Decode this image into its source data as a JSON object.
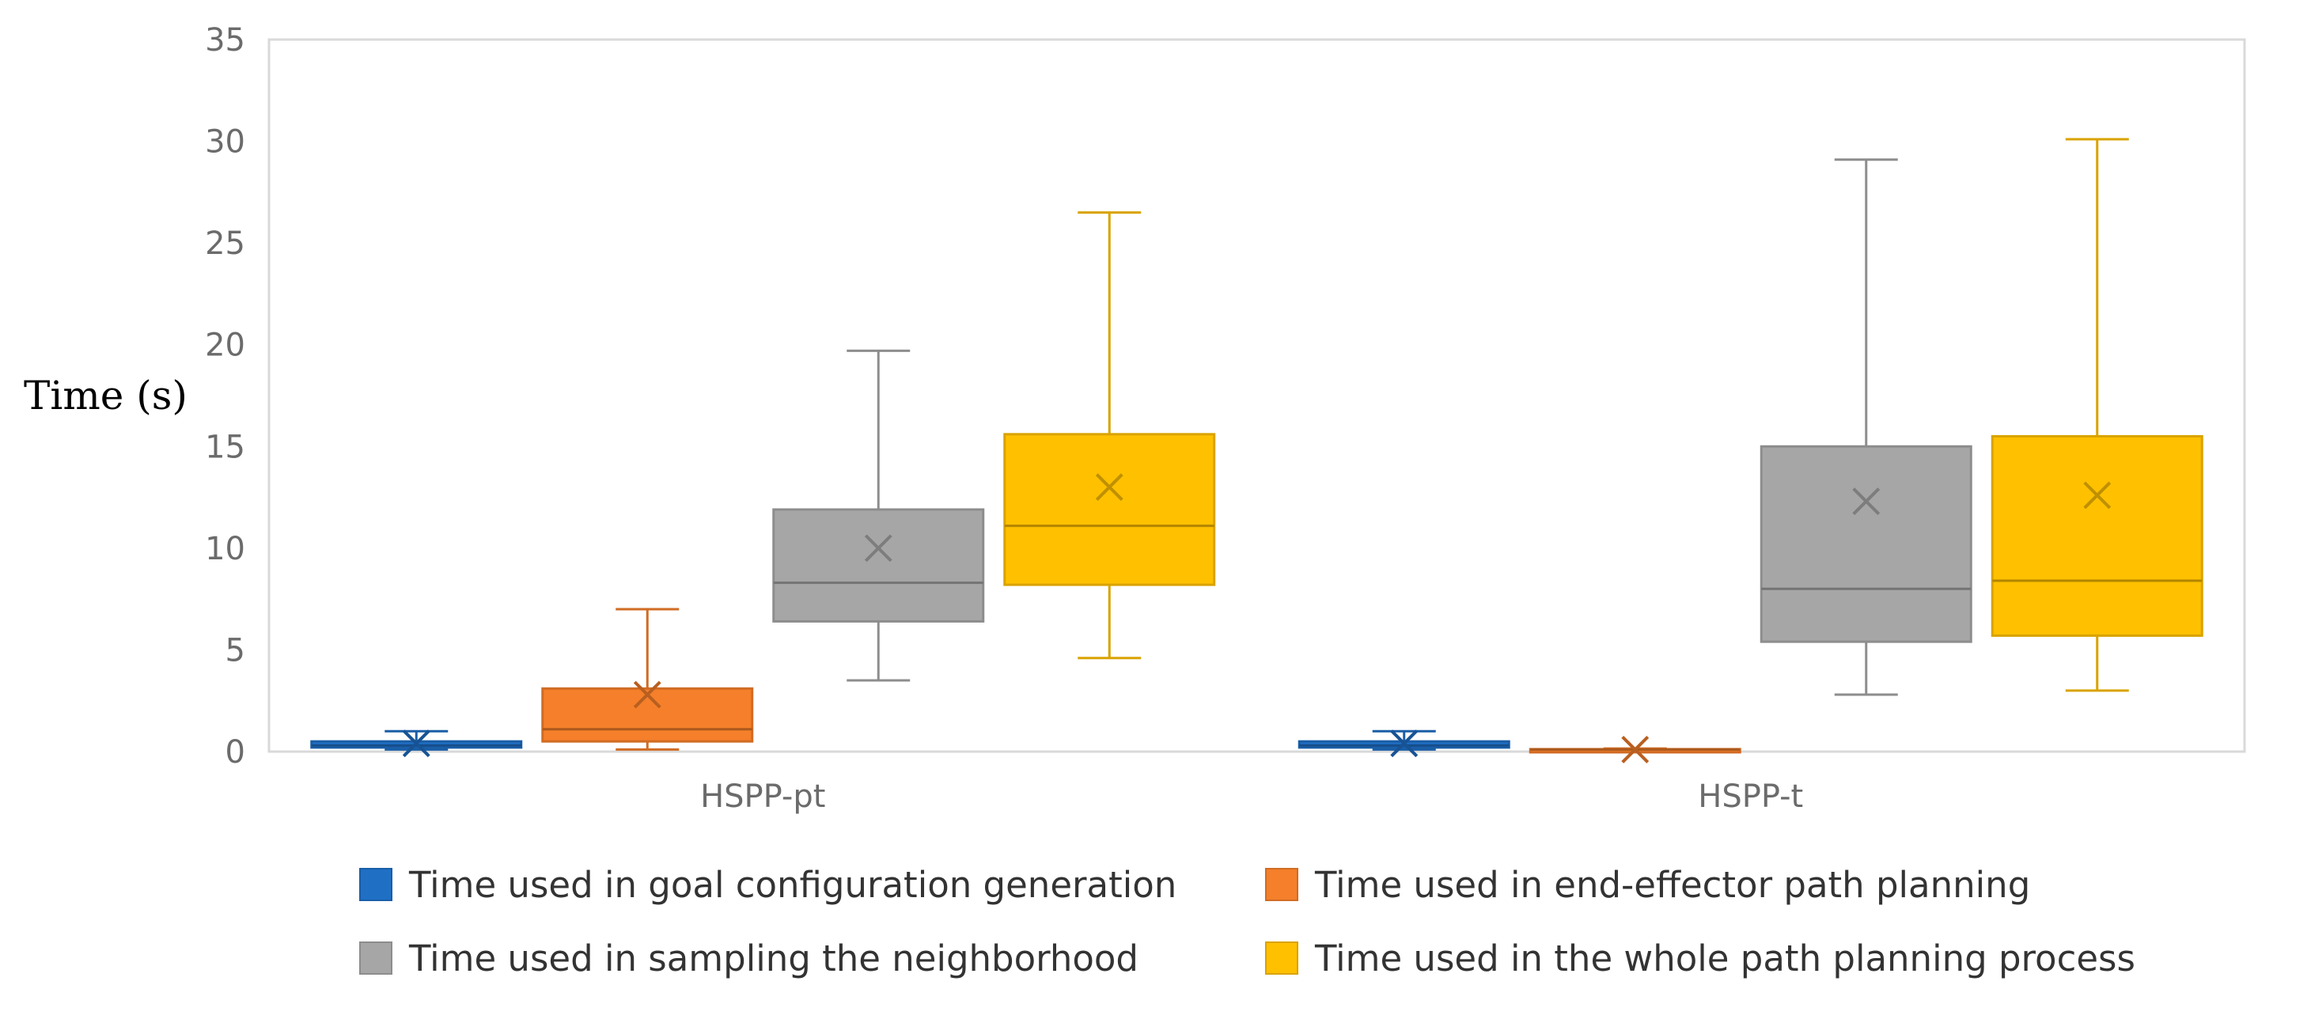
{
  "chart_data": {
    "type": "box",
    "ylabel": "Time (s)",
    "xlabel": "",
    "ylim": [
      0,
      35
    ],
    "yticks": [
      0,
      5,
      10,
      15,
      20,
      25,
      30,
      35
    ],
    "grid": false,
    "legend_position": "bottom",
    "categories": [
      "HSPP-pt",
      "HSPP-t"
    ],
    "series": [
      {
        "name": "Time used in goal configuration generation",
        "color": "#1f6fc5",
        "boxes": [
          {
            "min": 0.1,
            "q1": 0.2,
            "median": 0.3,
            "q3": 0.5,
            "max": 1.0,
            "mean": 0.4
          },
          {
            "min": 0.1,
            "q1": 0.2,
            "median": 0.3,
            "q3": 0.5,
            "max": 1.0,
            "mean": 0.4
          }
        ]
      },
      {
        "name": "Time used in end-effector path planning",
        "color": "#f57f2a",
        "boxes": [
          {
            "min": 0.1,
            "q1": 0.5,
            "median": 1.1,
            "q3": 3.1,
            "max": 7.0,
            "mean": 2.8
          },
          {
            "min": 0.05,
            "q1": 0.08,
            "median": 0.1,
            "q3": 0.12,
            "max": 0.15,
            "mean": 0.1
          }
        ]
      },
      {
        "name": "Time used in sampling the neighborhood",
        "color": "#a6a6a6",
        "boxes": [
          {
            "min": 3.5,
            "q1": 6.4,
            "median": 8.3,
            "q3": 11.9,
            "max": 19.7,
            "mean": 10.0
          },
          {
            "min": 2.8,
            "q1": 5.4,
            "median": 8.0,
            "q3": 15.0,
            "max": 29.1,
            "mean": 12.3
          }
        ]
      },
      {
        "name": "Time used in the whole path planning process",
        "color": "#ffc000",
        "boxes": [
          {
            "min": 4.6,
            "q1": 8.2,
            "median": 11.1,
            "q3": 15.6,
            "max": 26.5,
            "mean": 13.0
          },
          {
            "min": 3.0,
            "q1": 5.7,
            "median": 8.4,
            "q3": 15.5,
            "max": 30.1,
            "mean": 12.6
          }
        ]
      }
    ]
  }
}
